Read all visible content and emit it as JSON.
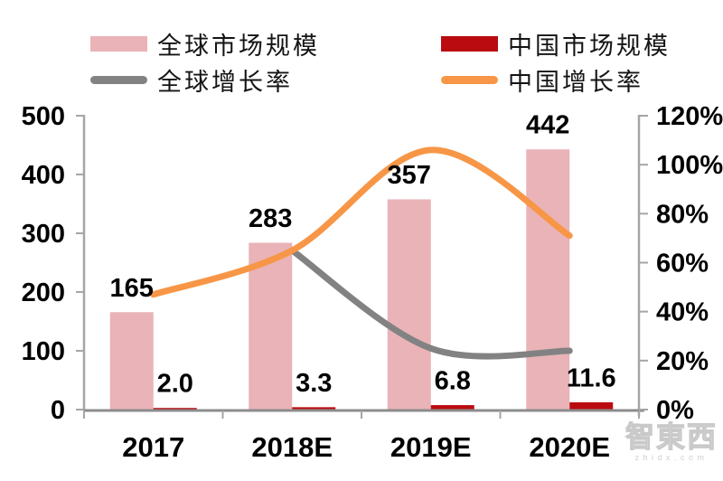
{
  "legend": {
    "items": [
      {
        "label": "全球市场规模",
        "type": "bar",
        "color": "#E9B3B7"
      },
      {
        "label": "全球增长率",
        "type": "line",
        "color": "#828282"
      },
      {
        "label": "中国市场规模",
        "type": "bar",
        "color": "#BA0C10"
      },
      {
        "label": "中国增长率",
        "type": "line",
        "color": "#F79646"
      }
    ]
  },
  "chart_data": {
    "type": "bar+line combo",
    "categories": [
      "2017",
      "2018E",
      "2019E",
      "2020E"
    ],
    "series": [
      {
        "name": "全球市场规模",
        "type": "bar",
        "axis": "left",
        "color": "#E9B3B7",
        "values": [
          165,
          283,
          357,
          442
        ],
        "labels": [
          "165",
          "283",
          "357",
          "442"
        ]
      },
      {
        "name": "中国市场规模",
        "type": "bar",
        "axis": "left",
        "color": "#BA0C10",
        "values": [
          2.0,
          3.3,
          6.8,
          11.6
        ],
        "labels": [
          "2.0",
          "3.3",
          "6.8",
          "11.6"
        ]
      },
      {
        "name": "全球增长率",
        "type": "line",
        "axis": "right",
        "color": "#828282",
        "values": [
          null,
          65,
          25,
          24
        ]
      },
      {
        "name": "中国增长率",
        "type": "line",
        "axis": "right",
        "color": "#F79646",
        "values": [
          47,
          65,
          106,
          71
        ]
      }
    ],
    "left_axis": {
      "min": 0,
      "max": 500,
      "step": 100,
      "ticks": [
        "0",
        "100",
        "200",
        "300",
        "400",
        "500"
      ]
    },
    "right_axis": {
      "min": 0,
      "max": 120,
      "step": 20,
      "ticks": [
        "0%",
        "20%",
        "40%",
        "60%",
        "80%",
        "100%",
        "120%"
      ]
    },
    "grid": false,
    "legend_position": "top"
  },
  "watermark": {
    "logo_text": "智東西",
    "domain_text": "zhidx.com"
  }
}
